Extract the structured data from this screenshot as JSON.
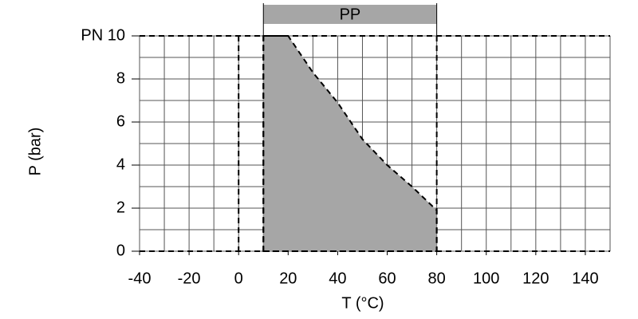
{
  "chart_data": {
    "type": "area",
    "xlabel": "T (°C)",
    "ylabel": "P (bar)",
    "series": [
      {
        "name": "PP",
        "color": "#a6a6a6",
        "x": [
          10,
          10,
          20,
          30,
          40,
          50,
          60,
          70,
          80,
          80
        ],
        "values": [
          0,
          10,
          10,
          8.3,
          6.9,
          5.2,
          4,
          3,
          1.9,
          0
        ]
      }
    ],
    "band": {
      "label": "PP",
      "from": 10,
      "to": 80,
      "color": "#a6a6a6"
    },
    "xlim": [
      -40,
      150
    ],
    "ylim": [
      0,
      10
    ],
    "xticks": [
      -40,
      -20,
      0,
      20,
      40,
      60,
      80,
      100,
      120,
      140
    ],
    "yticks": [
      0,
      2,
      4,
      6,
      8,
      {
        "value": 10,
        "label": "PN 10"
      }
    ],
    "x_grid_step": 10,
    "y_grid_step": 1,
    "grid": true,
    "dashed_x": [
      0,
      10,
      80
    ],
    "dashed_y": [
      0,
      10
    ]
  }
}
